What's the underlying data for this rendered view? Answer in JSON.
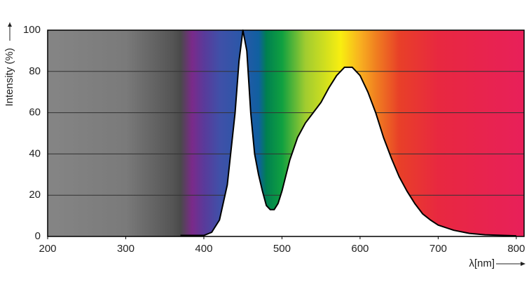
{
  "chart_data": {
    "type": "line",
    "y_label": "Intensity (%)",
    "x_label": "λ[nm]",
    "x": [
      370,
      400,
      410,
      420,
      430,
      440,
      445,
      450,
      455,
      460,
      465,
      470,
      475,
      480,
      485,
      490,
      495,
      500,
      510,
      520,
      530,
      540,
      550,
      560,
      570,
      580,
      590,
      600,
      610,
      620,
      630,
      640,
      650,
      660,
      670,
      680,
      690,
      700,
      720,
      740,
      760,
      800
    ],
    "values": [
      0.5,
      0.5,
      2,
      8,
      25,
      60,
      85,
      100,
      90,
      60,
      40,
      30,
      22,
      15,
      13,
      13,
      16,
      22,
      37,
      48,
      55,
      60,
      65,
      72,
      78,
      82,
      82,
      78,
      70,
      60,
      48,
      38,
      29,
      22,
      16,
      11,
      8,
      5.5,
      3,
      1.5,
      0.8,
      0.3
    ],
    "color": "#000000",
    "xlim": [
      200,
      810
    ],
    "ylim": [
      0,
      100
    ],
    "xticks": [
      200,
      300,
      400,
      500,
      600,
      700,
      800
    ],
    "yticks": [
      0,
      20,
      40,
      60,
      80,
      100
    ],
    "grid": true
  }
}
